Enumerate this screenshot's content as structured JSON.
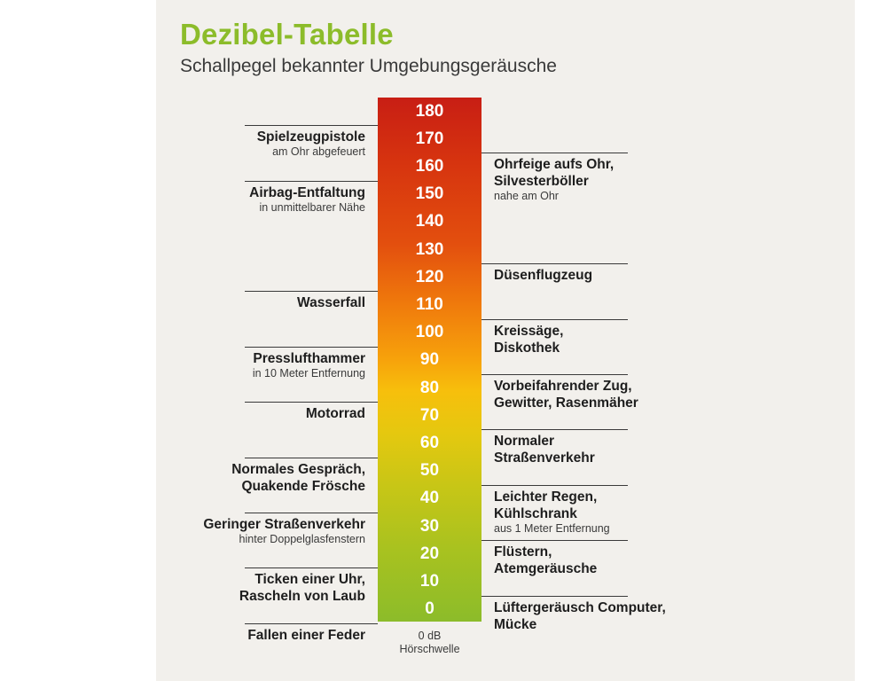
{
  "title": "Dezibel-Tabelle",
  "subtitle": "Schallpegel bekannter Umgebungsgeräusche",
  "chart_data": {
    "type": "table",
    "unit": "dB",
    "scale_ticks": [
      180,
      170,
      160,
      150,
      140,
      130,
      120,
      110,
      100,
      90,
      80,
      70,
      60,
      50,
      40,
      30,
      20,
      10,
      0
    ],
    "baseline_label": [
      "0 dB",
      "Hörschwelle"
    ],
    "entries_left": [
      {
        "db": 170,
        "lines": [
          "Spielzeugpistole"
        ],
        "note": "am Ohr abgefeuert"
      },
      {
        "db": 150,
        "lines": [
          "Airbag-Entfaltung"
        ],
        "note": "in unmittelbarer Nähe"
      },
      {
        "db": 110,
        "lines": [
          "Wasserfall"
        ],
        "note": ""
      },
      {
        "db": 90,
        "lines": [
          "Presslufthammer"
        ],
        "note": "in 10 Meter Entfernung"
      },
      {
        "db": 70,
        "lines": [
          "Motorrad"
        ],
        "note": ""
      },
      {
        "db": 50,
        "lines": [
          "Normales Gespräch,",
          "Quakende Frösche"
        ],
        "note": ""
      },
      {
        "db": 30,
        "lines": [
          "Geringer Straßenverkehr"
        ],
        "note": "hinter Doppelglasfenstern"
      },
      {
        "db": 10,
        "lines": [
          "Ticken einer Uhr,",
          "Rascheln von Laub"
        ],
        "note": ""
      },
      {
        "db": -10,
        "lines": [
          "Fallen einer Feder"
        ],
        "note": ""
      }
    ],
    "entries_right": [
      {
        "db": 160,
        "lines": [
          "Ohrfeige aufs Ohr,",
          "Silvesterböller"
        ],
        "note": "nahe am Ohr"
      },
      {
        "db": 120,
        "lines": [
          "Düsenflugzeug"
        ],
        "note": ""
      },
      {
        "db": 100,
        "lines": [
          "Kreissäge,",
          "Diskothek"
        ],
        "note": ""
      },
      {
        "db": 80,
        "lines": [
          "Vorbeifahrender Zug,",
          "Gewitter, Rasenmäher"
        ],
        "note": ""
      },
      {
        "db": 60,
        "lines": [
          "Normaler",
          "Straßenverkehr"
        ],
        "note": ""
      },
      {
        "db": 40,
        "lines": [
          "Leichter Regen,",
          "Kühlschrank"
        ],
        "note": "aus 1 Meter Entfernung"
      },
      {
        "db": 20,
        "lines": [
          "Flüstern,",
          "Atemgeräusche"
        ],
        "note": ""
      },
      {
        "db": 0,
        "lines": [
          "Lüftergeräusch Computer,",
          "Mücke"
        ],
        "note": ""
      }
    ]
  }
}
